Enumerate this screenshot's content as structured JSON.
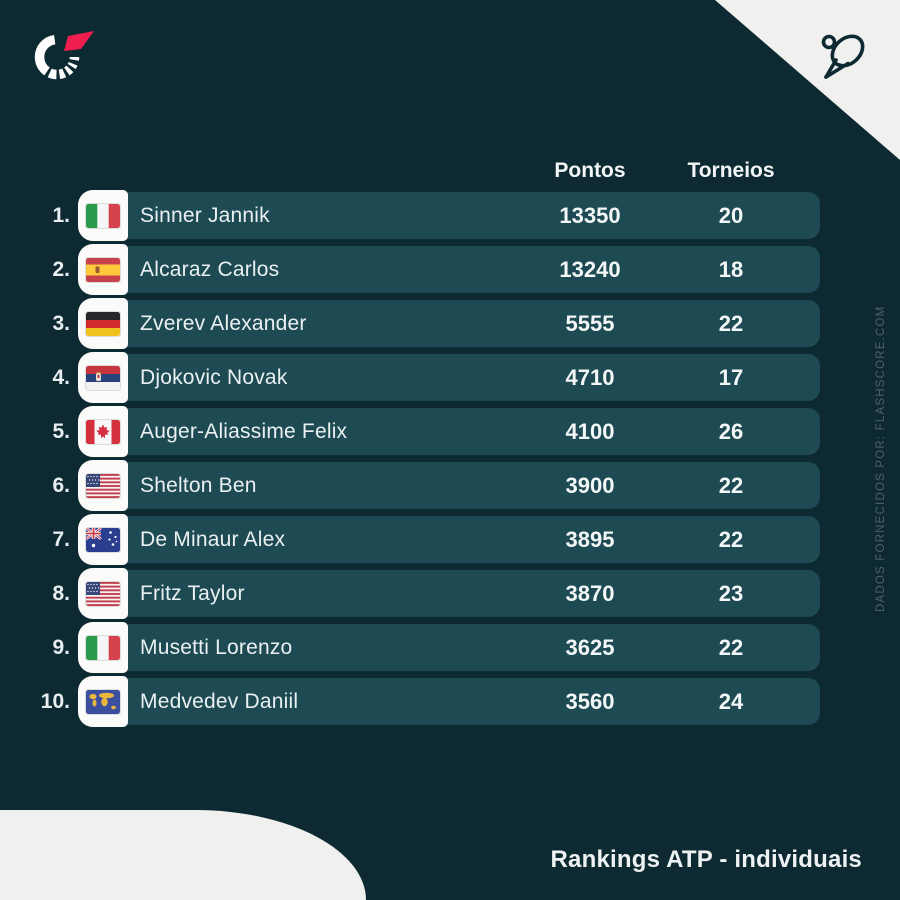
{
  "meta": {
    "brand": "Flashscore",
    "credit": "DADOS FORNECIDOS POR: FLASHSCORE.COM",
    "caption": "Rankings ATP - individuais"
  },
  "icons": {
    "top_left": "flashscore-logo-icon",
    "top_right": "tennis-racket-icon"
  },
  "colors": {
    "background": "#0d2931",
    "row_background": "#1e4a53",
    "corner_white": "#f0f0ee",
    "accent_red": "#f11d4e",
    "text_primary": "#f3f7f7",
    "credit_gray": "#4d6169"
  },
  "header": {
    "points_label": "Pontos",
    "tournaments_label": "Torneios"
  },
  "table": {
    "rows": [
      {
        "rank": "1.",
        "name": "Sinner Jannik",
        "flag": "italy",
        "points": "13350",
        "tournaments": "20"
      },
      {
        "rank": "2.",
        "name": "Alcaraz Carlos",
        "flag": "spain",
        "points": "13240",
        "tournaments": "18"
      },
      {
        "rank": "3.",
        "name": "Zverev Alexander",
        "flag": "germany",
        "points": "5555",
        "tournaments": "22"
      },
      {
        "rank": "4.",
        "name": "Djokovic Novak",
        "flag": "serbia",
        "points": "4710",
        "tournaments": "17"
      },
      {
        "rank": "5.",
        "name": "Auger-Aliassime Felix",
        "flag": "canada",
        "points": "4100",
        "tournaments": "26"
      },
      {
        "rank": "6.",
        "name": "Shelton Ben",
        "flag": "usa",
        "points": "3900",
        "tournaments": "22"
      },
      {
        "rank": "7.",
        "name": "De Minaur Alex",
        "flag": "australia",
        "points": "3895",
        "tournaments": "22"
      },
      {
        "rank": "8.",
        "name": "Fritz Taylor",
        "flag": "usa",
        "points": "3870",
        "tournaments": "23"
      },
      {
        "rank": "9.",
        "name": "Musetti Lorenzo",
        "flag": "italy",
        "points": "3625",
        "tournaments": "22"
      },
      {
        "rank": "10.",
        "name": "Medvedev Daniil",
        "flag": "world",
        "points": "3560",
        "tournaments": "24"
      }
    ]
  }
}
